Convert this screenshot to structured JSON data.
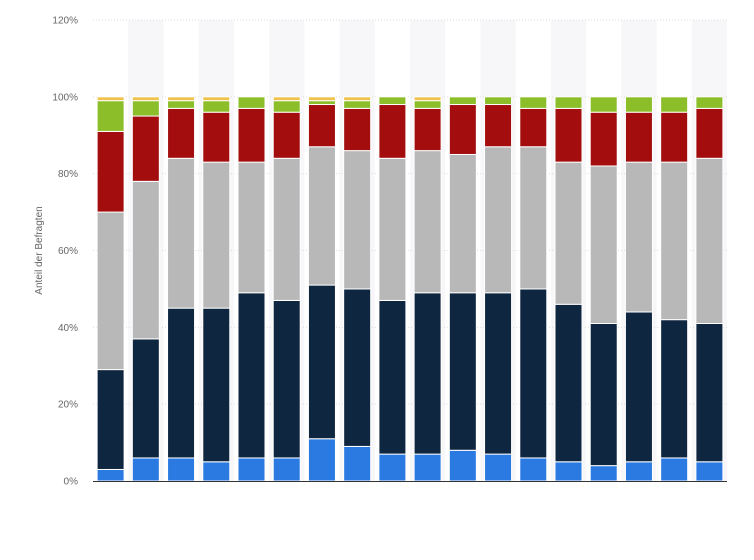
{
  "chart_data": {
    "type": "bar",
    "stacked": true,
    "ylabel": "Anteil der Befragten",
    "ylim": [
      0,
      120
    ],
    "yticks": [
      "0%",
      "20%",
      "40%",
      "60%",
      "80%",
      "100%",
      "120%"
    ],
    "grid": true,
    "legend": "none",
    "category_count": 18,
    "series": [
      {
        "color": "#2a7ae2",
        "values": [
          3,
          6,
          6,
          5,
          6,
          6,
          11,
          9,
          7,
          7,
          8,
          7,
          6,
          5,
          4,
          5,
          6,
          5
        ]
      },
      {
        "color": "#0f2640",
        "values": [
          26,
          31,
          39,
          40,
          43,
          41,
          40,
          41,
          40,
          42,
          41,
          42,
          44,
          41,
          37,
          39,
          36,
          36
        ]
      },
      {
        "color": "#b8b8b8",
        "values": [
          41,
          41,
          39,
          38,
          34,
          37,
          36,
          36,
          37,
          37,
          36,
          38,
          37,
          37,
          41,
          39,
          41,
          43
        ]
      },
      {
        "color": "#a30d0d",
        "values": [
          21,
          17,
          13,
          13,
          14,
          12,
          11,
          11,
          14,
          11,
          13,
          11,
          10,
          14,
          14,
          13,
          13,
          13
        ]
      },
      {
        "color": "#8bbe28",
        "values": [
          8,
          4,
          2,
          3,
          3,
          3,
          1,
          2,
          2,
          2,
          2,
          2,
          3,
          3,
          4,
          4,
          4,
          3
        ]
      },
      {
        "color": "#f0c24b",
        "values": [
          1,
          1,
          1,
          1,
          0,
          1,
          1,
          1,
          0,
          1,
          0,
          0,
          0,
          0,
          0,
          0,
          0,
          0
        ]
      }
    ]
  }
}
